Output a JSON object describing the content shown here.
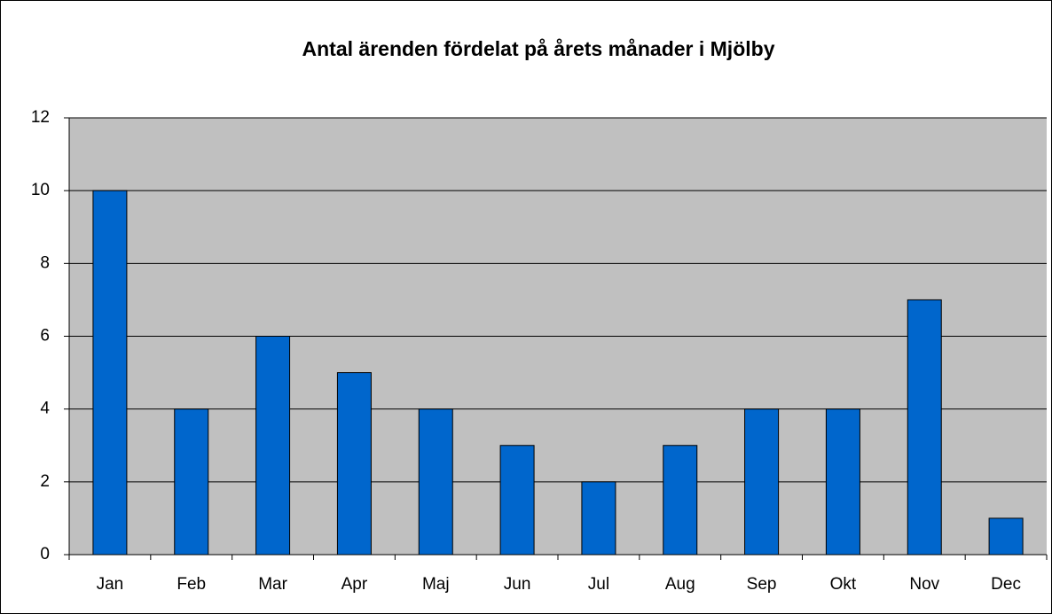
{
  "chart_data": {
    "type": "bar",
    "title": "Antal ärenden fördelat på årets månader i Mjölby",
    "categories": [
      "Jan",
      "Feb",
      "Mar",
      "Apr",
      "Maj",
      "Jun",
      "Jul",
      "Aug",
      "Sep",
      "Okt",
      "Nov",
      "Dec"
    ],
    "values": [
      10,
      4,
      6,
      5,
      4,
      3,
      2,
      3,
      4,
      4,
      7,
      1
    ],
    "color": "#0066cc",
    "ylim": [
      0,
      12
    ],
    "yticks": [
      0,
      2,
      4,
      6,
      8,
      10,
      12
    ],
    "grid": true
  }
}
